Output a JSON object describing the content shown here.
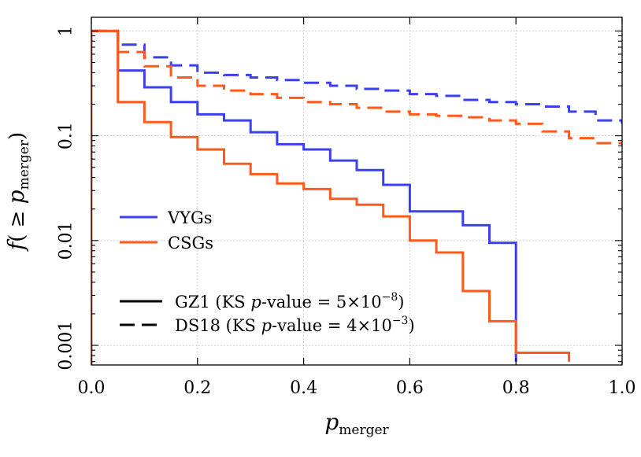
{
  "chart_data": {
    "type": "line",
    "step": true,
    "xlabel": "p_merger",
    "ylabel": "f( ≥ p_merger)",
    "xlim": [
      0,
      1
    ],
    "ylim": [
      0.00065,
      1.35
    ],
    "yscale": "log",
    "grid": true,
    "x_ticks": [
      {
        "value": 0.0,
        "label": "0.0"
      },
      {
        "value": 0.2,
        "label": "0.2"
      },
      {
        "value": 0.4,
        "label": "0.4"
      },
      {
        "value": 0.6,
        "label": "0.6"
      },
      {
        "value": 0.8,
        "label": "0.8"
      },
      {
        "value": 1.0,
        "label": "1.0"
      }
    ],
    "y_ticks": [
      {
        "value": 1,
        "label": "1"
      },
      {
        "value": 0.1,
        "label": "0.1"
      },
      {
        "value": 0.01,
        "label": "0.01"
      },
      {
        "value": 0.001,
        "label": "0.001"
      }
    ],
    "legend_colors": {
      "position": "lower-left",
      "entries": [
        {
          "label": "VYGs",
          "color": "#3b3ff0"
        },
        {
          "label": "CSGs",
          "color": "#ff5a1a"
        }
      ]
    },
    "legend_styles": {
      "position": "lower-left",
      "entries": [
        {
          "label": "GZ1 (KS p-value = 5×10^−8)",
          "prefix": "GZ1 (KS ",
          "p": "p",
          "mid": "-value = 5×10",
          "exp": "−8",
          "suffix": ")",
          "dash": "solid"
        },
        {
          "label": "DS18 (KS p-value = 4×10^−3)",
          "prefix": "DS18 (KS ",
          "p": "p",
          "mid": "-value = 4×10",
          "exp": "−3",
          "suffix": ")",
          "dash": "dashed"
        }
      ]
    },
    "series": [
      {
        "name": "VYGs GZ1",
        "color": "#3b3ff0",
        "dash": "solid",
        "x": [
          0.0,
          0.05,
          0.1,
          0.15,
          0.2,
          0.25,
          0.3,
          0.35,
          0.4,
          0.45,
          0.5,
          0.55,
          0.6,
          0.65,
          0.7,
          0.75,
          0.8
        ],
        "y": [
          1.0,
          0.42,
          0.29,
          0.21,
          0.16,
          0.14,
          0.108,
          0.083,
          0.074,
          0.058,
          0.047,
          0.034,
          0.019,
          0.019,
          0.014,
          0.0095,
          0.0007
        ]
      },
      {
        "name": "CSGs GZ1",
        "color": "#ff5a1a",
        "dash": "solid",
        "x": [
          0.0,
          0.05,
          0.1,
          0.15,
          0.2,
          0.25,
          0.3,
          0.35,
          0.4,
          0.45,
          0.5,
          0.55,
          0.6,
          0.65,
          0.7,
          0.75,
          0.8,
          0.85,
          0.9
        ],
        "y": [
          1.0,
          0.21,
          0.135,
          0.097,
          0.074,
          0.054,
          0.043,
          0.035,
          0.031,
          0.025,
          0.022,
          0.017,
          0.01,
          0.0077,
          0.0033,
          0.0017,
          0.00085,
          0.00085,
          0.0007
        ]
      },
      {
        "name": "VYGs DS18",
        "color": "#3b3ff0",
        "dash": "dashed",
        "x": [
          0.0,
          0.05,
          0.1,
          0.15,
          0.2,
          0.25,
          0.3,
          0.35,
          0.4,
          0.45,
          0.5,
          0.55,
          0.6,
          0.65,
          0.7,
          0.75,
          0.8,
          0.85,
          0.9,
          0.95,
          1.0
        ],
        "y": [
          1.0,
          0.74,
          0.56,
          0.47,
          0.4,
          0.38,
          0.36,
          0.34,
          0.32,
          0.3,
          0.28,
          0.27,
          0.25,
          0.24,
          0.22,
          0.21,
          0.2,
          0.19,
          0.17,
          0.14,
          0.13
        ]
      },
      {
        "name": "CSGs DS18",
        "color": "#ff5a1a",
        "dash": "dashed",
        "x": [
          0.0,
          0.05,
          0.1,
          0.15,
          0.2,
          0.25,
          0.3,
          0.35,
          0.4,
          0.45,
          0.5,
          0.55,
          0.6,
          0.65,
          0.7,
          0.75,
          0.8,
          0.85,
          0.9,
          0.95,
          1.0
        ],
        "y": [
          1.0,
          0.63,
          0.46,
          0.36,
          0.3,
          0.27,
          0.25,
          0.23,
          0.21,
          0.2,
          0.185,
          0.17,
          0.16,
          0.155,
          0.15,
          0.14,
          0.13,
          0.11,
          0.095,
          0.085,
          0.082
        ]
      }
    ]
  }
}
